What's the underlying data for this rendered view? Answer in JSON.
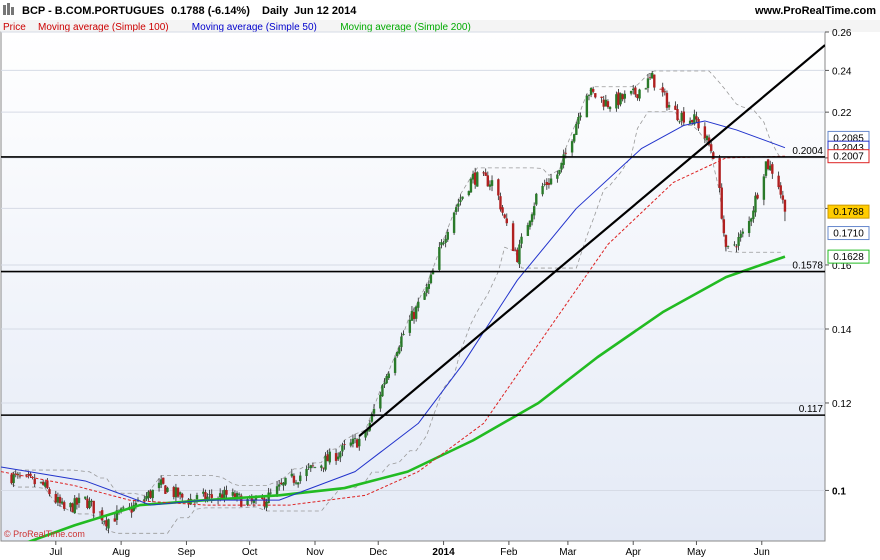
{
  "header": {
    "title": "BCP - B.COM.PORTUGUES",
    "price": "0.1788 (-6.14%)",
    "period": "Daily",
    "date": "Jun 12 2014",
    "website": "www.ProRealTime.com",
    "copyright": "© ProRealTime.com"
  },
  "legend": [
    {
      "label": "Price",
      "color": "#cc0000"
    },
    {
      "label": "Moving average (Simple 100)",
      "color": "#cc0000"
    },
    {
      "label": "Moving average (Simple 50)",
      "color": "#0000cc"
    },
    {
      "label": "Moving average (Simple 200)",
      "color": "#00aa00"
    }
  ],
  "colors": {
    "up": "#2a7a2a",
    "down": "#b02020",
    "sma50": "#2233cc",
    "sma100": "#dd2222",
    "sma200": "#22bb22",
    "trend": "#000000",
    "envelope": "#999999",
    "plot_bg_top": "#ffffff",
    "plot_bg_bottom": "#e4eaf6"
  },
  "chart_data": {
    "type": "candlestick",
    "y_scale": "log",
    "ylim": [
      0.09,
      0.26
    ],
    "y_ticks": [
      0.1,
      0.12,
      0.14,
      0.16,
      0.18,
      0.2,
      0.22,
      0.24,
      0.26
    ],
    "x_months": [
      {
        "label": "Jul",
        "date": "2013-07-01"
      },
      {
        "label": "Aug",
        "date": "2013-08-01"
      },
      {
        "label": "Sep",
        "date": "2013-09-01"
      },
      {
        "label": "Oct",
        "date": "2013-10-01"
      },
      {
        "label": "Nov",
        "date": "2013-11-01"
      },
      {
        "label": "Dec",
        "date": "2013-12-01"
      },
      {
        "label": "2014",
        "date": "2014-01-01",
        "bold": true
      },
      {
        "label": "Feb",
        "date": "2014-02-01"
      },
      {
        "label": "Mar",
        "date": "2014-03-01"
      },
      {
        "label": "Apr",
        "date": "2014-04-01"
      },
      {
        "label": "May",
        "date": "2014-05-01"
      },
      {
        "label": "Jun",
        "date": "2014-06-01"
      }
    ],
    "price_path": [
      [
        "2013-06-10",
        0.103
      ],
      [
        "2013-06-25",
        0.101
      ],
      [
        "2013-07-05",
        0.096
      ],
      [
        "2013-07-15",
        0.098
      ],
      [
        "2013-07-25",
        0.094
      ],
      [
        "2013-08-05",
        0.096
      ],
      [
        "2013-08-20",
        0.101
      ],
      [
        "2013-09-01",
        0.098
      ],
      [
        "2013-09-20",
        0.099
      ],
      [
        "2013-10-05",
        0.097
      ],
      [
        "2013-10-20",
        0.102
      ],
      [
        "2013-11-05",
        0.106
      ],
      [
        "2013-11-25",
        0.112
      ],
      [
        "2013-12-10",
        0.135
      ],
      [
        "2013-12-25",
        0.153
      ],
      [
        "2014-01-05",
        0.178
      ],
      [
        "2014-01-15",
        0.192
      ],
      [
        "2014-01-25",
        0.19
      ],
      [
        "2014-02-01",
        0.17
      ],
      [
        "2014-02-05",
        0.163
      ],
      [
        "2014-02-15",
        0.187
      ],
      [
        "2014-02-25",
        0.194
      ],
      [
        "2014-03-01",
        0.204
      ],
      [
        "2014-03-10",
        0.23
      ],
      [
        "2014-03-20",
        0.224
      ],
      [
        "2014-04-01",
        0.228
      ],
      [
        "2014-04-10",
        0.236
      ],
      [
        "2014-04-20",
        0.22
      ],
      [
        "2014-05-01",
        0.216
      ],
      [
        "2014-05-10",
        0.2
      ],
      [
        "2014-05-15",
        0.164
      ],
      [
        "2014-05-25",
        0.172
      ],
      [
        "2014-06-03",
        0.198
      ],
      [
        "2014-06-08",
        0.193
      ],
      [
        "2014-06-12",
        0.1788
      ]
    ],
    "sma50": [
      [
        "2013-06-05",
        0.105
      ],
      [
        "2013-07-15",
        0.102
      ],
      [
        "2013-08-15",
        0.097
      ],
      [
        "2013-09-10",
        0.098
      ],
      [
        "2013-10-15",
        0.098
      ],
      [
        "2013-11-20",
        0.104
      ],
      [
        "2013-12-20",
        0.115
      ],
      [
        "2014-01-10",
        0.13
      ],
      [
        "2014-02-05",
        0.155
      ],
      [
        "2014-03-05",
        0.18
      ],
      [
        "2014-04-05",
        0.204
      ],
      [
        "2014-04-25",
        0.214
      ],
      [
        "2014-05-05",
        0.216
      ],
      [
        "2014-05-20",
        0.212
      ],
      [
        "2014-06-12",
        0.2043
      ]
    ],
    "sma100": [
      [
        "2013-06-05",
        0.104
      ],
      [
        "2013-07-10",
        0.101
      ],
      [
        "2013-08-05",
        0.098
      ],
      [
        "2013-09-10",
        0.097
      ],
      [
        "2013-10-20",
        0.097
      ],
      [
        "2013-11-25",
        0.099
      ],
      [
        "2013-12-20",
        0.104
      ],
      [
        "2014-01-20",
        0.115
      ],
      [
        "2014-02-20",
        0.14
      ],
      [
        "2014-03-20",
        0.167
      ],
      [
        "2014-04-20",
        0.19
      ],
      [
        "2014-05-15",
        0.2
      ],
      [
        "2014-06-12",
        0.2007
      ]
    ],
    "sma200": [
      [
        "2013-06-05",
        0.088
      ],
      [
        "2013-07-10",
        0.093
      ],
      [
        "2013-08-10",
        0.097
      ],
      [
        "2013-09-10",
        0.098
      ],
      [
        "2013-10-15",
        0.099
      ],
      [
        "2013-11-15",
        0.1005
      ],
      [
        "2013-12-15",
        0.104
      ],
      [
        "2014-01-15",
        0.111
      ],
      [
        "2014-02-15",
        0.12
      ],
      [
        "2014-03-15",
        0.132
      ],
      [
        "2014-04-15",
        0.145
      ],
      [
        "2014-05-15",
        0.156
      ],
      [
        "2014-06-12",
        0.1628
      ]
    ],
    "trendlines": [
      {
        "from": [
          "2013-11-22",
          0.112
        ],
        "to": [
          "2014-07-01",
          0.253
        ]
      }
    ],
    "hlines": [
      {
        "value": 0.2004,
        "label": "0.2004"
      },
      {
        "value": 0.1578,
        "label": "0.1578"
      },
      {
        "value": 0.117,
        "label": "0.117"
      }
    ],
    "price_badges": [
      {
        "value": 0.2085,
        "label": "0.2085",
        "bg": "#ffffff",
        "border": "#6688cc",
        "fg": "#888888"
      },
      {
        "value": 0.2043,
        "label": "0.2043",
        "bg": "#ffffff",
        "border": "#2233cc",
        "fg": "#2233cc"
      },
      {
        "value": 0.2007,
        "label": "0.2007",
        "bg": "#ffffff",
        "border": "#dd2222",
        "fg": "#dd2222"
      },
      {
        "value": 0.1788,
        "label": "0.1788",
        "bg": "#ffcc00",
        "border": "#cc9900",
        "fg": "#000000"
      },
      {
        "value": 0.171,
        "label": "0.1710",
        "bg": "#ffffff",
        "border": "#6688cc",
        "fg": "#888888"
      },
      {
        "value": 0.1628,
        "label": "0.1628",
        "bg": "#ffffff",
        "border": "#22bb22",
        "fg": "#118811"
      }
    ]
  }
}
